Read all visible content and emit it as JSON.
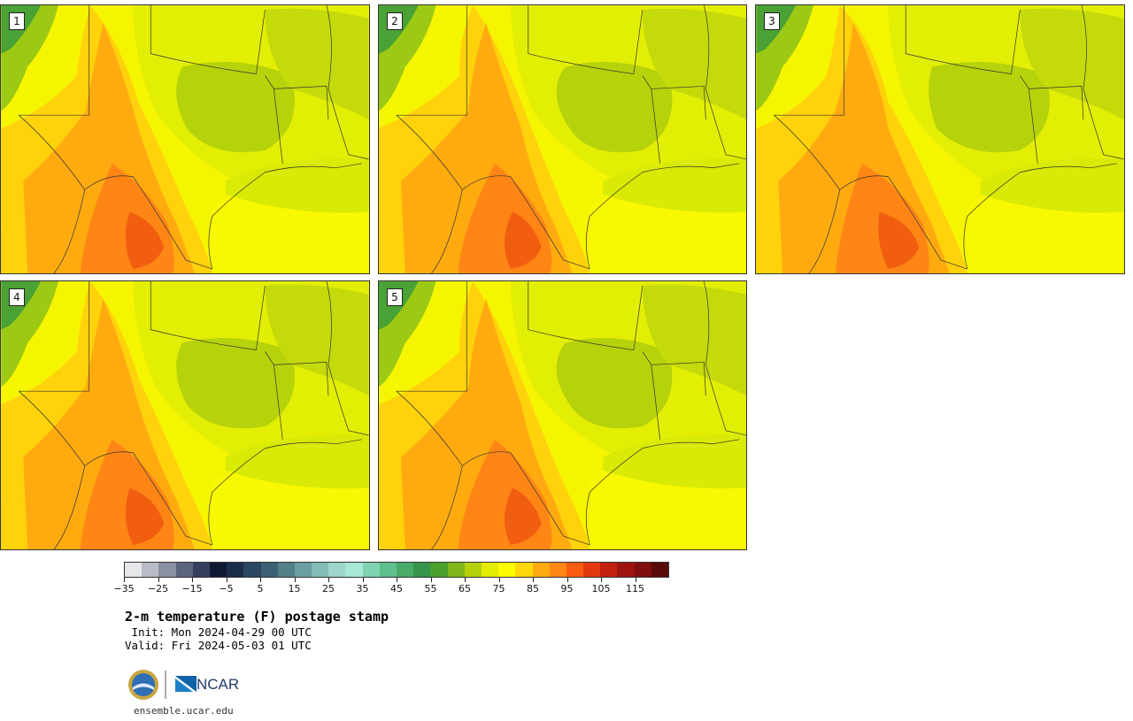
{
  "panels": [
    {
      "label": "1",
      "variant": 1
    },
    {
      "label": "2",
      "variant": 2
    },
    {
      "label": "3",
      "variant": 3
    },
    {
      "label": "4",
      "variant": 4
    },
    {
      "label": "5",
      "variant": 5
    }
  ],
  "colorbar": {
    "tick_labels": [
      "−35",
      "−25",
      "−15",
      "−5",
      "5",
      "15",
      "25",
      "35",
      "45",
      "55",
      "65",
      "75",
      "85",
      "95",
      "105",
      "115"
    ],
    "colors": [
      "#e5e7ea",
      "#b8bcc6",
      "#8a91a3",
      "#5b6580",
      "#34405e",
      "#0e1a33",
      "#1a2c48",
      "#2a4660",
      "#3d6174",
      "#537f89",
      "#6a9ea0",
      "#83bbb6",
      "#9ed5ca",
      "#a8e8d6",
      "#80d3b0",
      "#5fbf8d",
      "#49aa69",
      "#37954a",
      "#4aa12f",
      "#80b71c",
      "#b6d10b",
      "#e5ec03",
      "#fdfb00",
      "#ffd60b",
      "#ffaa10",
      "#ff8615",
      "#fa5d11",
      "#e2380f",
      "#c21f0e",
      "#9e130f",
      "#7e0f0c",
      "#5a0b08"
    ]
  },
  "title": "2-m temperature (F) postage stamp",
  "init": " Init: Mon 2024-04-29 00 UTC",
  "valid": "Valid: Fri 2024-05-03 01 UTC",
  "logos": {
    "nsf": "NSF",
    "ncar": "NCAR"
  },
  "site": "ensemble.ucar.edu"
}
